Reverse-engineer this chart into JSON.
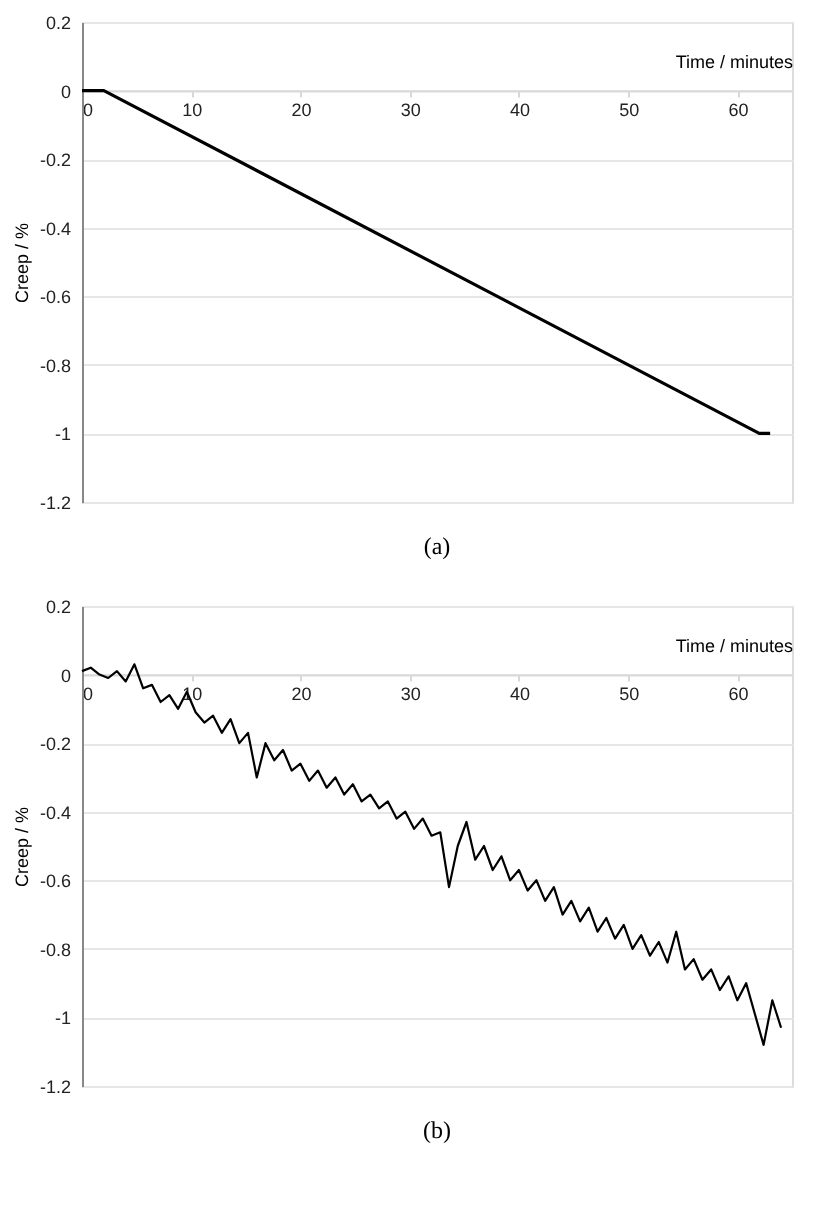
{
  "chart_data": [
    {
      "type": "line",
      "title": "(a)",
      "xlabel": "Time / minutes",
      "ylabel": "Creep / %",
      "x": [
        0,
        2,
        62,
        63
      ],
      "series": [
        {
          "color": "#000000",
          "values": [
            0,
            0,
            -1,
            -1
          ]
        }
      ],
      "xlim": [
        0,
        65
      ],
      "ylim": [
        -1.2,
        0.2
      ],
      "xticks": [
        0,
        10,
        20,
        30,
        40,
        50,
        60
      ],
      "yticks": [
        -1.2,
        -1,
        -0.8,
        -0.6,
        -0.4,
        -0.2,
        0,
        0.2
      ],
      "grid": "y",
      "marker": "none",
      "line_style": "solid"
    },
    {
      "type": "line",
      "title": "(b)",
      "xlabel": "Time / minutes",
      "ylabel": "Creep / %",
      "x": [
        0,
        0.8,
        1.6,
        2.4,
        3.2,
        4.0,
        4.8,
        5.6,
        6.4,
        7.2,
        8.0,
        8.8,
        9.6,
        10.4,
        11.2,
        12.0,
        12.8,
        13.6,
        14.4,
        15.2,
        16.0,
        16.8,
        17.6,
        18.4,
        19.2,
        20.0,
        20.8,
        21.6,
        22.4,
        23.2,
        24.0,
        24.8,
        25.6,
        26.4,
        27.2,
        28.0,
        28.8,
        29.6,
        30.4,
        31.2,
        32.0,
        32.8,
        33.6,
        34.4,
        35.2,
        36.0,
        36.8,
        37.6,
        38.4,
        39.2,
        40.0,
        40.8,
        41.6,
        42.4,
        43.2,
        44.0,
        44.8,
        45.6,
        46.4,
        47.2,
        48.0,
        48.8,
        49.6,
        50.4,
        51.2,
        52.0,
        52.8,
        53.6,
        54.4,
        55.2,
        56.0,
        56.8,
        57.6,
        58.4,
        59.2,
        60.0,
        60.8,
        61.6,
        62.4,
        63.2,
        64.0
      ],
      "series": [
        {
          "color": "#000000",
          "values": [
            0.01,
            0.02,
            0.0,
            -0.01,
            0.01,
            -0.02,
            0.03,
            -0.04,
            -0.03,
            -0.08,
            -0.06,
            -0.1,
            -0.05,
            -0.11,
            -0.14,
            -0.12,
            -0.17,
            -0.13,
            -0.2,
            -0.17,
            -0.3,
            -0.2,
            -0.25,
            -0.22,
            -0.28,
            -0.26,
            -0.31,
            -0.28,
            -0.33,
            -0.3,
            -0.35,
            -0.32,
            -0.37,
            -0.35,
            -0.39,
            -0.37,
            -0.42,
            -0.4,
            -0.45,
            -0.42,
            -0.47,
            -0.46,
            -0.62,
            -0.5,
            -0.43,
            -0.54,
            -0.5,
            -0.57,
            -0.53,
            -0.6,
            -0.57,
            -0.63,
            -0.6,
            -0.66,
            -0.62,
            -0.7,
            -0.66,
            -0.72,
            -0.68,
            -0.75,
            -0.71,
            -0.77,
            -0.73,
            -0.8,
            -0.76,
            -0.82,
            -0.78,
            -0.84,
            -0.75,
            -0.86,
            -0.83,
            -0.89,
            -0.86,
            -0.92,
            -0.88,
            -0.95,
            -0.9,
            -0.99,
            -1.08,
            -0.95,
            -1.03
          ]
        }
      ],
      "xlim": [
        0,
        65
      ],
      "ylim": [
        -1.2,
        0.2
      ],
      "xticks": [
        0,
        10,
        20,
        30,
        40,
        50,
        60
      ],
      "yticks": [
        -1.2,
        -1,
        -0.8,
        -0.6,
        -0.4,
        -0.2,
        0,
        0.2
      ],
      "grid": "y",
      "marker": "none",
      "line_style": "solid"
    }
  ]
}
